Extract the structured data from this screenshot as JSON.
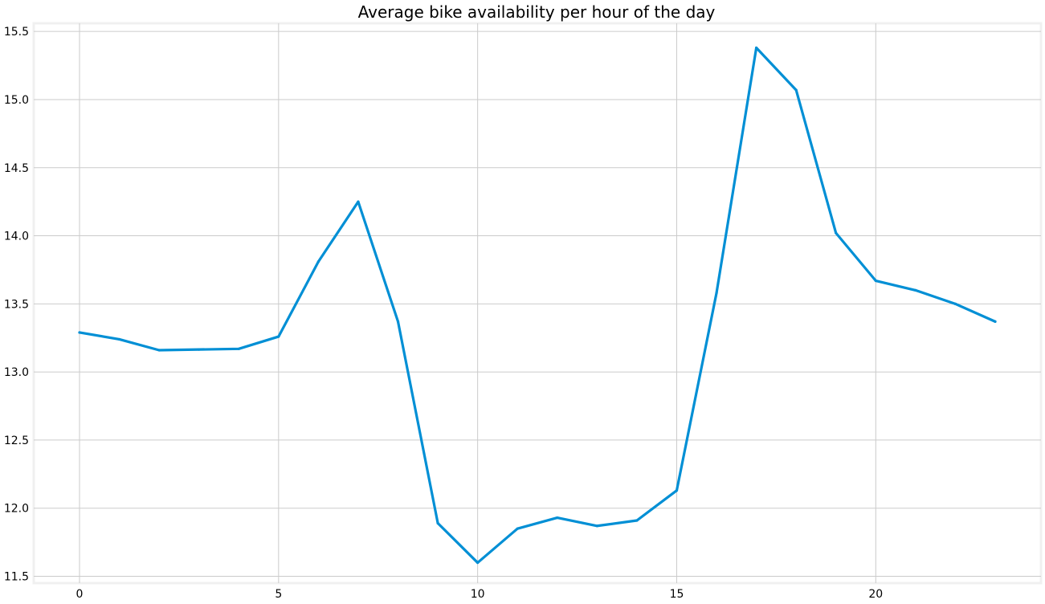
{
  "chart_data": {
    "type": "line",
    "title": "Average bike availability per hour of the day",
    "xlabel": "",
    "ylabel": "",
    "x": [
      0,
      1,
      2,
      3,
      4,
      5,
      6,
      7,
      8,
      9,
      10,
      11,
      12,
      13,
      14,
      15,
      16,
      17,
      18,
      19,
      20,
      21,
      22,
      23
    ],
    "series": [
      {
        "values": [
          13.29,
          13.24,
          13.16,
          13.165,
          13.17,
          13.26,
          13.81,
          14.25,
          13.37,
          11.89,
          11.6,
          11.85,
          11.93,
          11.87,
          11.91,
          12.13,
          13.58,
          15.38,
          15.07,
          14.02,
          13.67,
          13.6,
          13.5,
          13.37
        ]
      }
    ],
    "xlim": [
      -1.15,
      24.15
    ],
    "ylim": [
      11.45,
      15.56
    ],
    "xticks": [
      0,
      5,
      10,
      15,
      20
    ],
    "yticks": [
      11.5,
      12.0,
      12.5,
      13.0,
      13.5,
      14.0,
      14.5,
      15.0,
      15.5
    ],
    "xtick_labels": [
      "0",
      "5",
      "10",
      "15",
      "20"
    ],
    "ytick_labels": [
      "11.5",
      "12.0",
      "12.5",
      "13.0",
      "13.5",
      "14.0",
      "14.5",
      "15.0",
      "15.5"
    ],
    "grid": true,
    "line_color": "#008fd5",
    "grid_color": "#cbcbcb",
    "background_color": "#ffffff",
    "frame_color": "#f0f0f0"
  }
}
